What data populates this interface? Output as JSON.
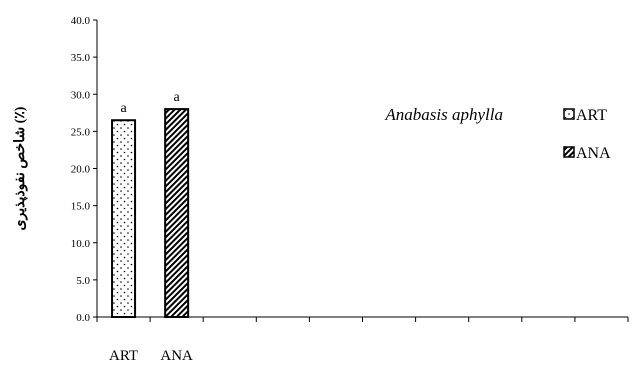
{
  "chart_data": {
    "type": "bar",
    "title": "",
    "annotation": "Anabasis aphylla",
    "ylabel": "شاخص نفوذپذیری (٪)",
    "xlabel": "",
    "ylim": [
      0,
      40
    ],
    "yticks": [
      0,
      5,
      10,
      15,
      20,
      25,
      30,
      35,
      40
    ],
    "ytick_labels": [
      "0.0",
      "5.0",
      "10.0",
      "15.0",
      "20.0",
      "25.0",
      "30.0",
      "35.0",
      "40.0"
    ],
    "x_slots": 10,
    "categories": [
      "ART",
      "ANA"
    ],
    "values": [
      26.5,
      28.0
    ],
    "bar_letters": [
      "a",
      "a"
    ],
    "legend": [
      {
        "label": "ART",
        "pattern": "dots"
      },
      {
        "label": "ANA",
        "pattern": "diagonal"
      }
    ],
    "legend_position": "right",
    "grid": false,
    "colors": {
      "bar_stroke": "#000000",
      "pattern_fill": "#000000",
      "axis": "#000000"
    }
  }
}
